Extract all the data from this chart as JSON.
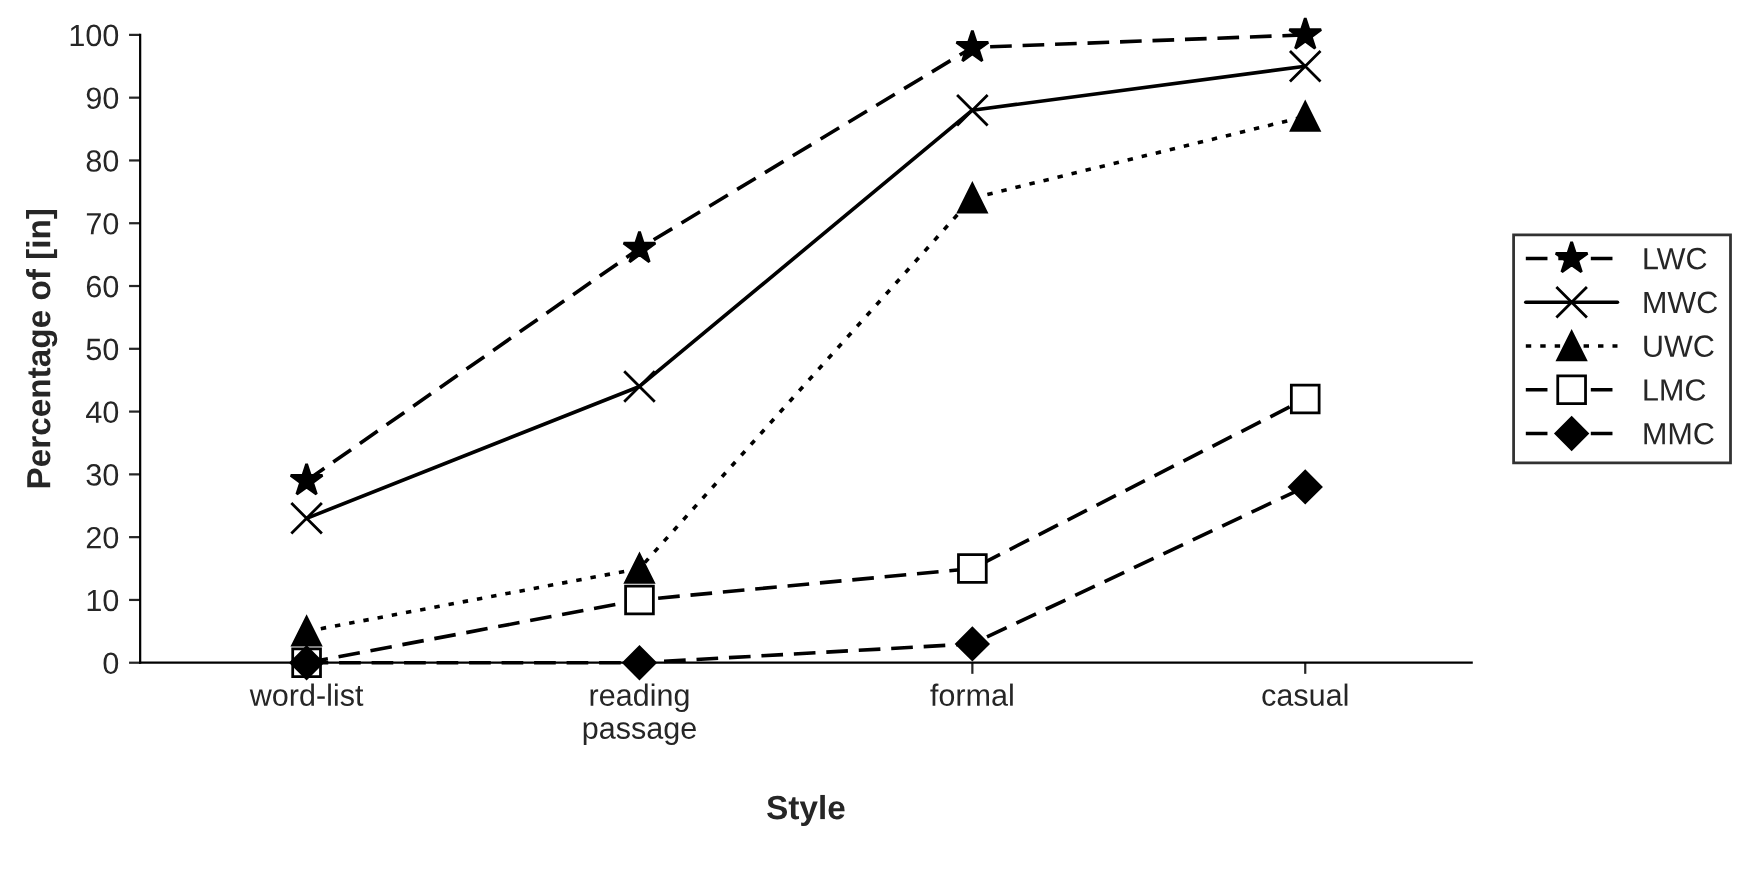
{
  "chart_data": {
    "type": "line",
    "xlabel": "Style",
    "ylabel": "Percentage of [in]",
    "categories": [
      "word-list",
      "reading\npassage",
      "formal",
      "casual"
    ],
    "ylim": [
      0,
      100
    ],
    "yticks": [
      0,
      10,
      20,
      30,
      40,
      50,
      60,
      70,
      80,
      90,
      100
    ],
    "grid": false,
    "legend": "right",
    "series": [
      {
        "name": "LWC",
        "color": "#000000",
        "marker": "star",
        "line_style": "dashed",
        "values": [
          29,
          66,
          98,
          100
        ]
      },
      {
        "name": "MWC",
        "color": "#000000",
        "marker": "cross",
        "line_style": "solid",
        "values": [
          23,
          44,
          88,
          95
        ]
      },
      {
        "name": "UWC",
        "color": "#000000",
        "marker": "triangle",
        "line_style": "dotted",
        "values": [
          5,
          15,
          74,
          87
        ]
      },
      {
        "name": "LMC",
        "color": "#000000",
        "marker": "square",
        "line_style": "dashed",
        "values": [
          0,
          10,
          15,
          42
        ]
      },
      {
        "name": "MMC",
        "color": "#000000",
        "marker": "diamond",
        "line_style": "dashed",
        "values": [
          0,
          0,
          3,
          28
        ]
      }
    ]
  }
}
